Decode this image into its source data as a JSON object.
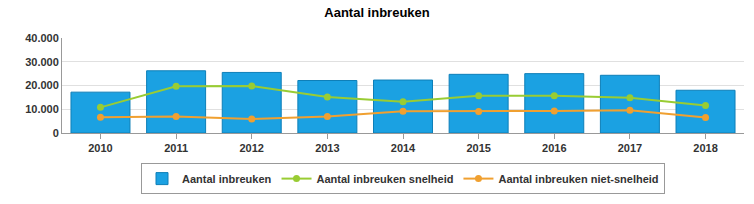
{
  "chart_data": {
    "type": "bar",
    "title": "Aantal inbreuken",
    "categories": [
      "2010",
      "2011",
      "2012",
      "2013",
      "2014",
      "2015",
      "2016",
      "2017",
      "2018"
    ],
    "series": [
      {
        "name": "Aantal inbreuken",
        "type": "bar",
        "color": "#1ba1e2",
        "values": [
          17200,
          26200,
          25500,
          22100,
          22300,
          24700,
          25000,
          24300,
          18000
        ]
      },
      {
        "name": "Aantal inbreuken snelheid",
        "type": "line",
        "color": "#99cc33",
        "marker": "circle",
        "values": [
          10800,
          19700,
          19800,
          15200,
          13200,
          15700,
          15700,
          14800,
          11600
        ]
      },
      {
        "name": "Aantal inbreuken niet-snelheid",
        "type": "line",
        "color": "#f0a030",
        "marker": "circle",
        "values": [
          6600,
          6900,
          5900,
          7000,
          9200,
          9100,
          9300,
          9600,
          6500
        ]
      }
    ],
    "ylim": [
      0,
      40000
    ],
    "yticks": [
      0,
      {
        "value": 10000,
        "label": "10.000"
      },
      {
        "value": 20000,
        "label": "20.000"
      },
      {
        "value": 30000,
        "label": "30.000"
      },
      {
        "value": 40000,
        "label": "40.000"
      }
    ],
    "grid": true,
    "legend": "bottom"
  }
}
